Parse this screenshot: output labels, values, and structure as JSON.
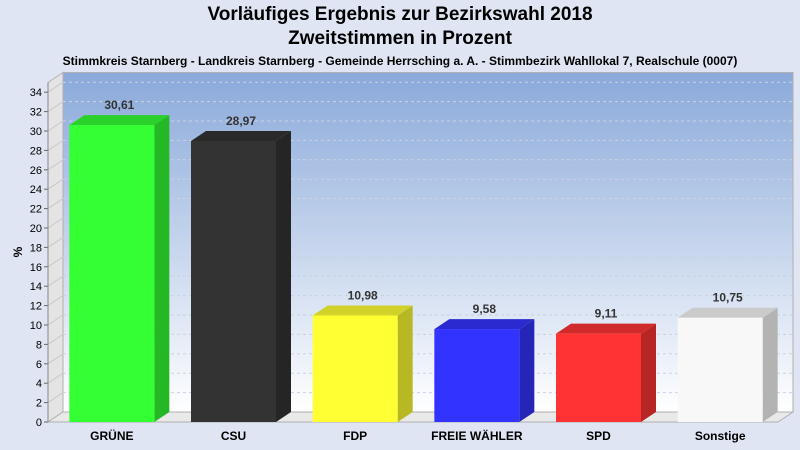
{
  "chart_data": {
    "type": "bar",
    "title": "Vorläufiges Ergebnis zur Bezirkswahl 2018",
    "subtitle": "Zweitstimmen in Prozent",
    "caption": "Stimmkreis Starnberg - Landkreis Starnberg - Gemeinde Herrsching a. A. - Stimmbezirk Wahllokal 7, Realschule (0007)",
    "ylabel": "%",
    "xlabel": "",
    "ylim": [
      0,
      35
    ],
    "yticks": [
      0,
      2,
      4,
      6,
      8,
      10,
      12,
      14,
      16,
      18,
      20,
      22,
      24,
      26,
      28,
      30,
      32,
      34
    ],
    "grid": true,
    "categories": [
      "GRÜNE",
      "CSU",
      "FDP",
      "FREIE WÄHLER",
      "SPD",
      "Sonstige"
    ],
    "values": [
      30.61,
      28.97,
      10.98,
      9.58,
      9.11,
      10.75
    ],
    "value_labels": [
      "30,61",
      "28,97",
      "10,98",
      "9,58",
      "9,11",
      "10,75"
    ],
    "colors": [
      "#33ff33",
      "#333333",
      "#ffff33",
      "#3333ff",
      "#ff3333",
      "#f8f8f8"
    ]
  }
}
